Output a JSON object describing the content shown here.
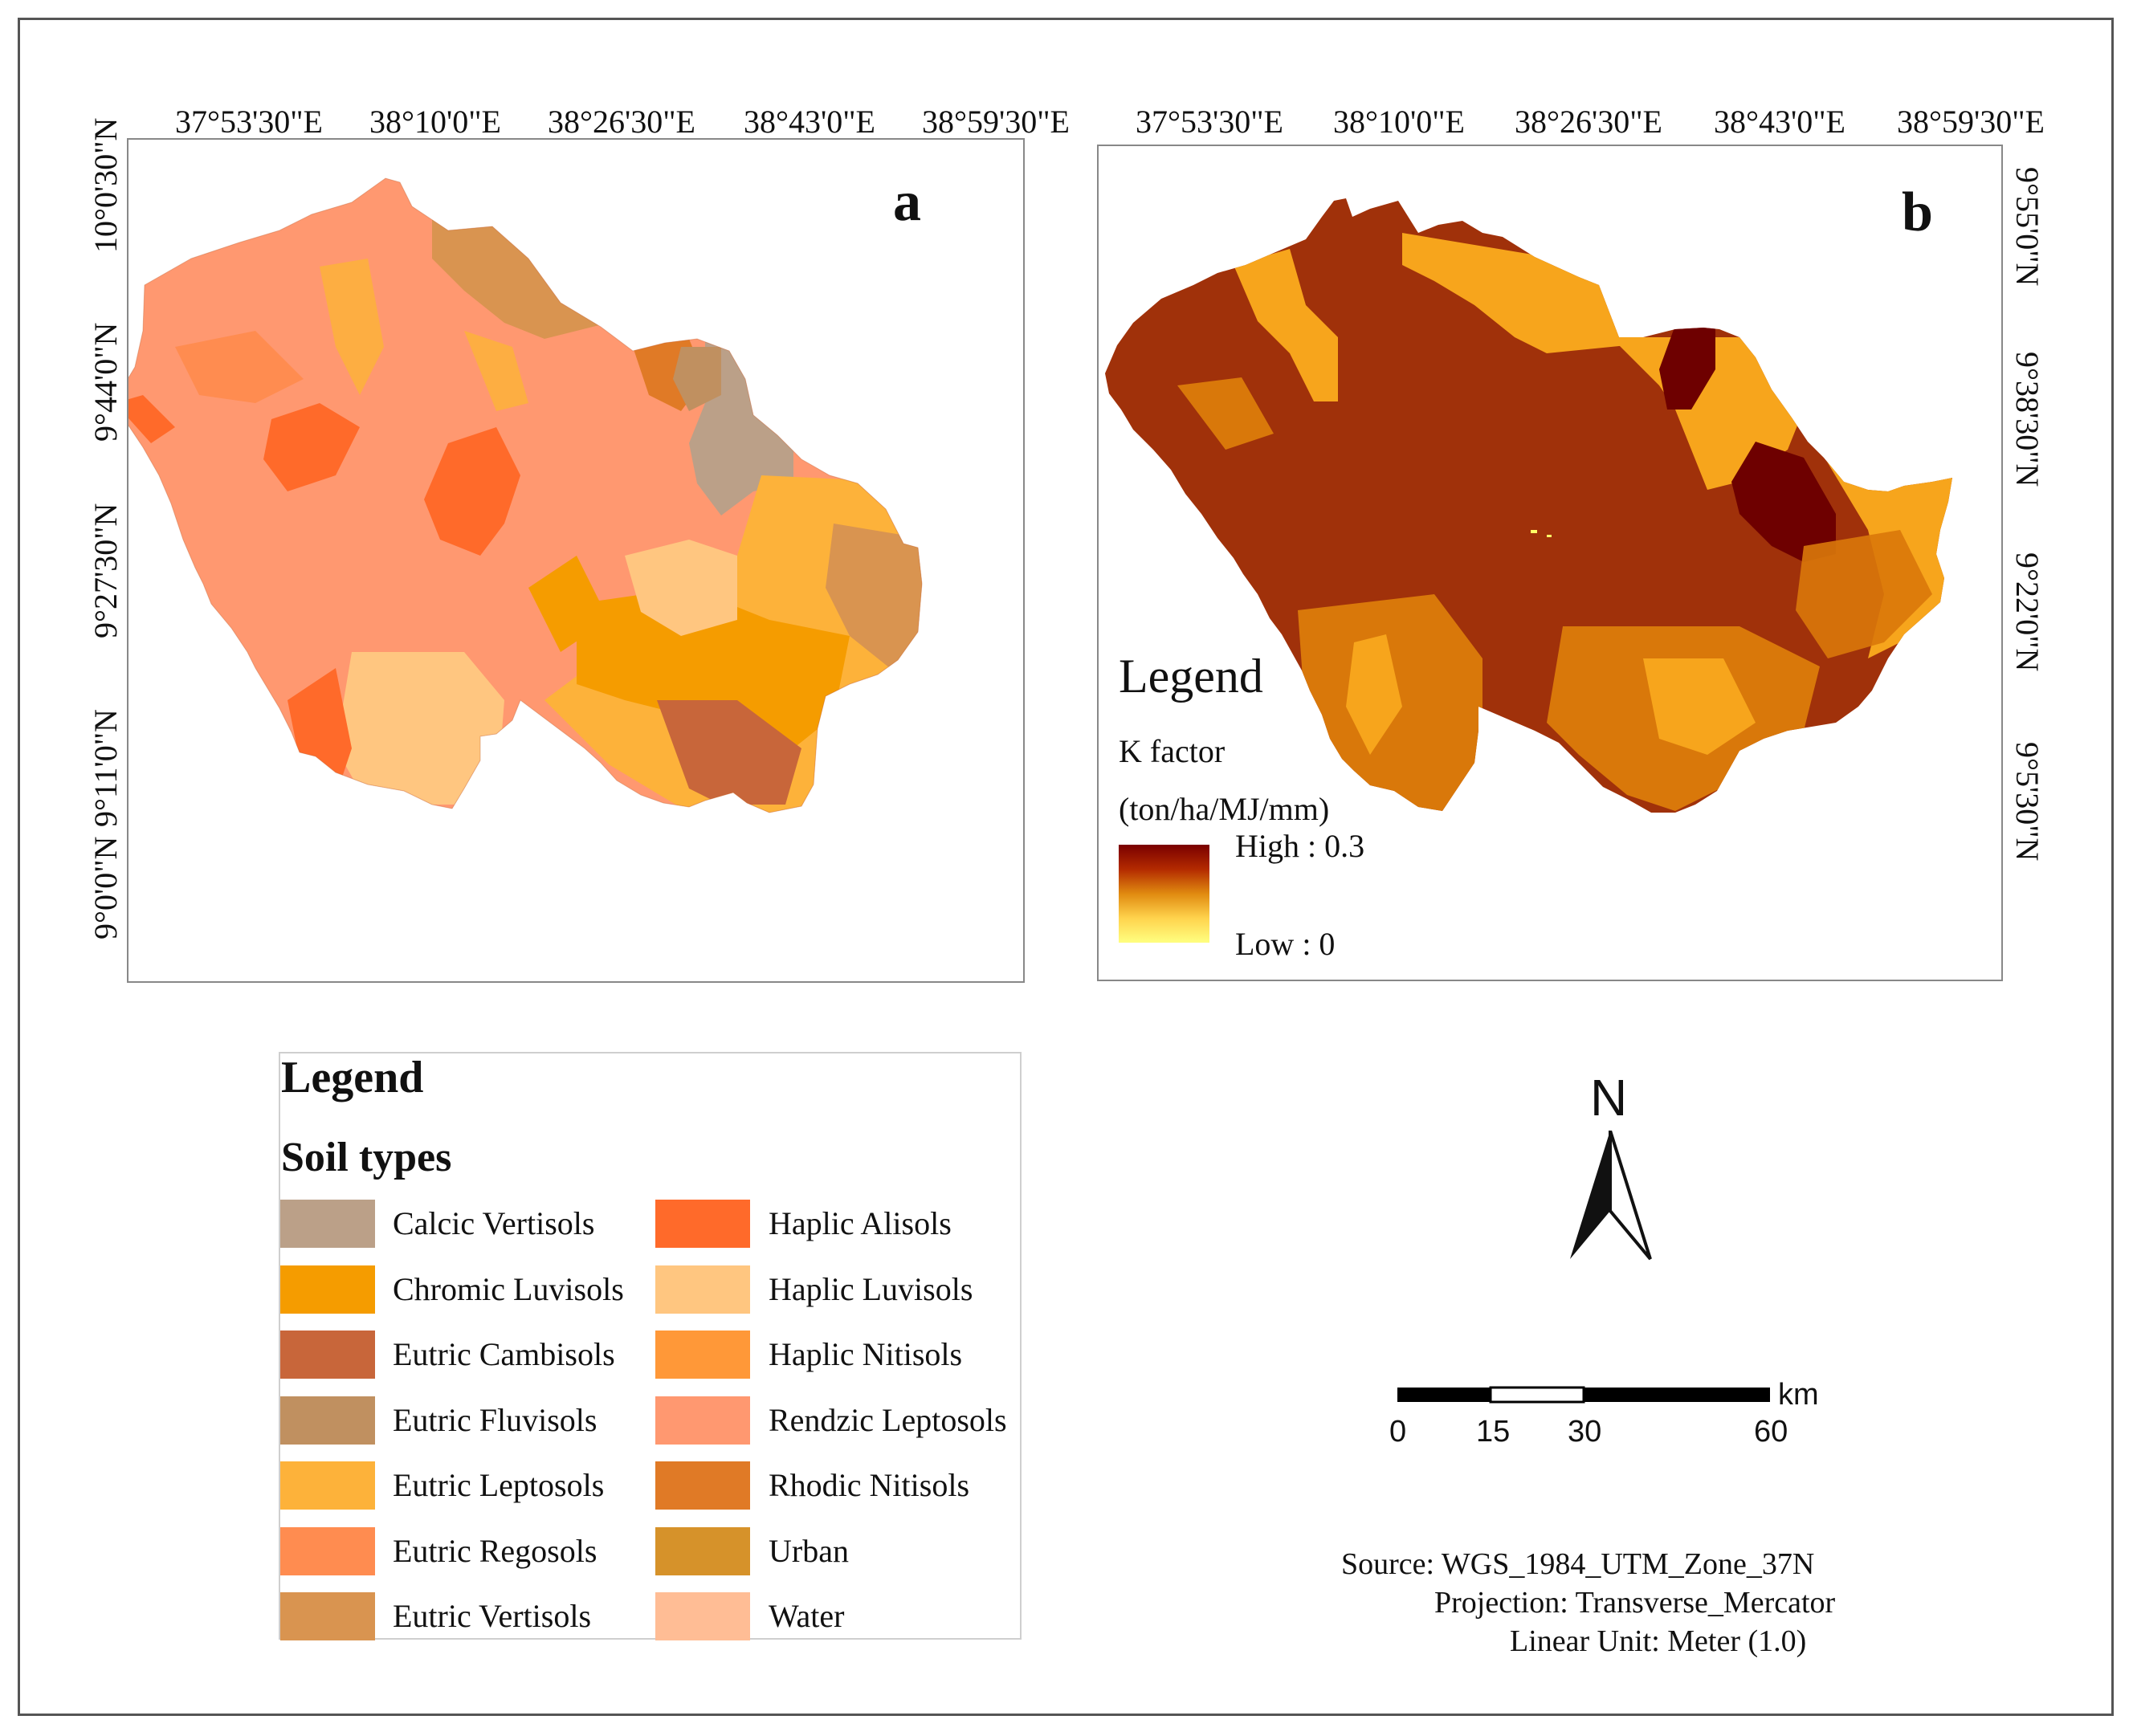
{
  "panel_a": {
    "letter": "a",
    "lon_labels": [
      "37°53'30\"E",
      "38°10'0\"E",
      "38°26'30\"E",
      "38°43'0\"E",
      "38°59'30\"E"
    ],
    "lat_labels": [
      "10°0'30\"N",
      "9°44'0\"N",
      "9°27'30\"N",
      "9°11'0\"N",
      "9°0'0\"N"
    ]
  },
  "panel_b": {
    "letter": "b",
    "lon_labels": [
      "37°53'30\"E",
      "38°10'0\"E",
      "38°26'30\"E",
      "38°43'0\"E",
      "38°59'30\"E"
    ],
    "lat_labels": [
      "9°55'0\"N",
      "9°38'30\"N",
      "9°22'0\"N",
      "9°5'30\"N"
    ],
    "legend": {
      "title": "Legend",
      "variable": "K factor",
      "unit": "(ton/ha/MJ/mm)",
      "high": "High : 0.3",
      "low": "Low : 0",
      "ramp": [
        "#7a0000",
        "#b32a00",
        "#e08a10",
        "#ffd34d",
        "#ffff80"
      ]
    },
    "colors": {
      "very_high": "#6e0000",
      "high": "#a0310a",
      "medium": "#d9780a",
      "low": "#f7a51c",
      "very_low": "#ffff66"
    }
  },
  "soil_legend": {
    "title": "Legend",
    "subtitle": "Soil types",
    "left": [
      {
        "name": "Calcic Vertisols",
        "color": "#bba088"
      },
      {
        "name": "Chromic Luvisols",
        "color": "#f59c00"
      },
      {
        "name": "Eutric Cambisols",
        "color": "#c8663a"
      },
      {
        "name": "Eutric Fluvisols",
        "color": "#c09060"
      },
      {
        "name": "Eutric Leptosols",
        "color": "#fdb23a"
      },
      {
        "name": "Eutric Regosols",
        "color": "#ff8c50"
      },
      {
        "name": "Eutric Vertisols",
        "color": "#d99450"
      }
    ],
    "right": [
      {
        "name": "Haplic Alisols",
        "color": "#ff6a2a"
      },
      {
        "name": "Haplic Luvisols",
        "color": "#ffc680"
      },
      {
        "name": "Haplic Nitisols",
        "color": "#ff9838"
      },
      {
        "name": "Rendzic Leptosols",
        "color": "#ff9870"
      },
      {
        "name": "Rhodic Nitisols",
        "color": "#e07a26"
      },
      {
        "name": "Urban",
        "color": "#d6922a"
      },
      {
        "name": "Water",
        "color": "#ffbd95"
      }
    ]
  },
  "north_arrow": {
    "label": "N"
  },
  "scale_bar": {
    "unit": "km",
    "ticks": [
      "0",
      "15",
      "30",
      "60"
    ]
  },
  "info": {
    "source": "Source: WGS_1984_UTM_Zone_37N",
    "projection": "Projection: Transverse_Mercator",
    "linear_unit": "Linear Unit: Meter (1.0)"
  }
}
